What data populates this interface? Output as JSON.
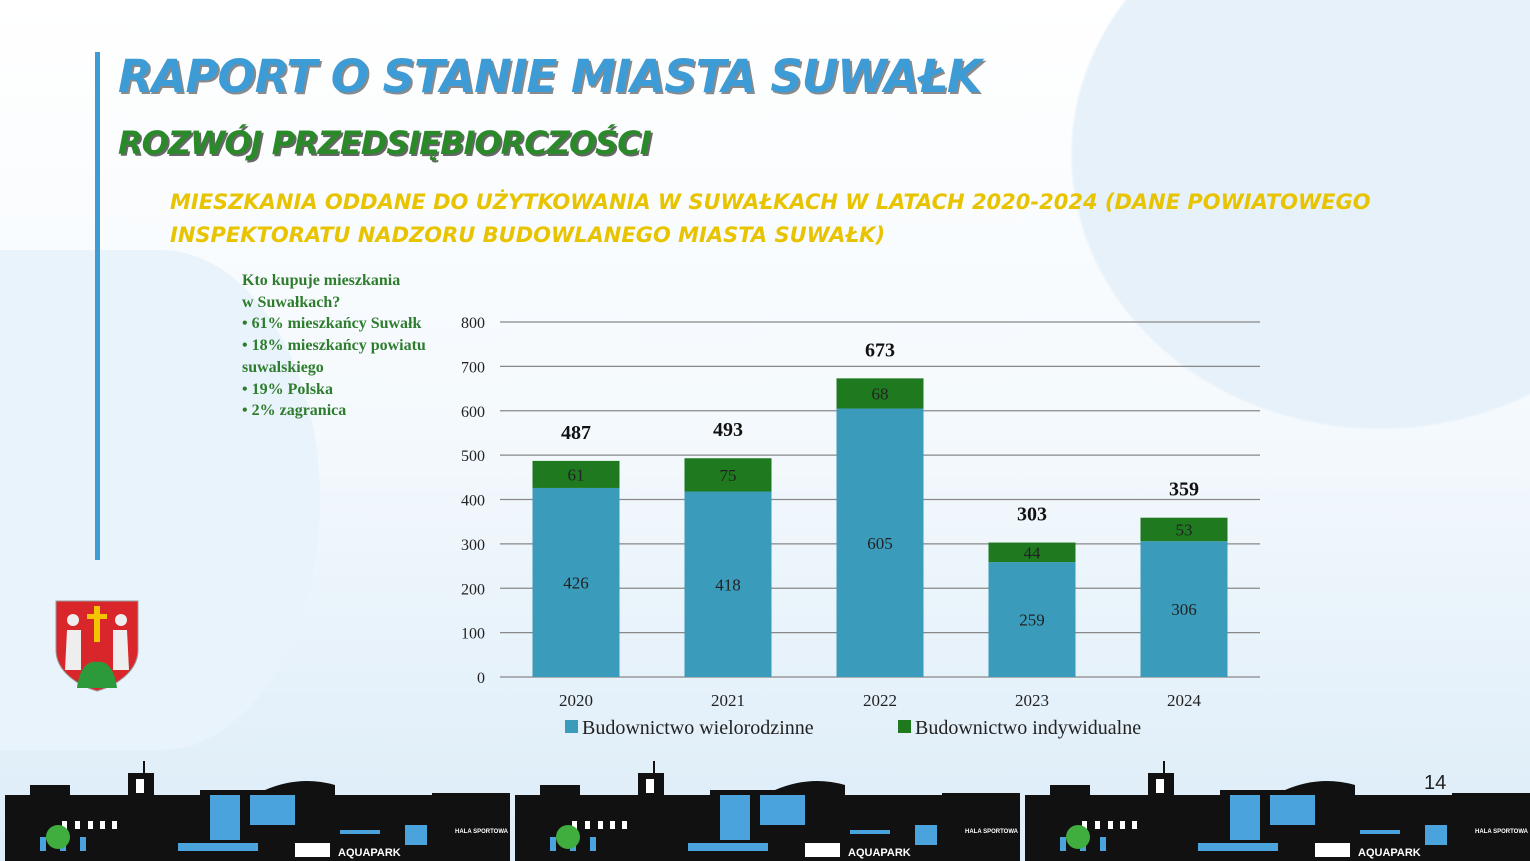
{
  "header": {
    "title": "RAPORT O STANIE MIASTA SUWAŁK",
    "subtitle": "ROZWÓJ PRZEDSIĘBIORCZOŚCI",
    "chart_heading": "MIESZKANIA ODDANE DO UŻYTKOWANIA W SUWAŁKACH W LATACH 2020-2024 (DANE POWIATOWEGO INSPEKTORATU NADZORU BUDOWLANEGO MIASTA SUWAŁK)"
  },
  "side_note": {
    "lines": [
      "Kto kupuje mieszkania",
      "w Suwałkach?",
      "• 61% mieszkańcy Suwałk",
      "• 18% mieszkańcy powiatu",
      "suwalskiego",
      "• 19% Polska",
      "• 2% zagranica"
    ]
  },
  "page_number": "14",
  "skyline": {
    "label1": "AQUAPARK",
    "label2": "HALA SPORTOWA"
  },
  "chart_data": {
    "type": "bar",
    "stacked": true,
    "categories": [
      "2020",
      "2021",
      "2022",
      "2023",
      "2024"
    ],
    "series": [
      {
        "name": "Budownictwo wielorodzinne",
        "color": "#3a9bbb",
        "values": [
          426,
          418,
          605,
          259,
          306
        ]
      },
      {
        "name": "Budownictwo indywidualne",
        "color": "#1f7a1f",
        "values": [
          61,
          75,
          68,
          44,
          53
        ]
      }
    ],
    "totals": [
      487,
      493,
      673,
      303,
      359
    ],
    "ylim": [
      0,
      800
    ],
    "yticks": [
      0,
      100,
      200,
      300,
      400,
      500,
      600,
      700,
      800
    ],
    "grid": true,
    "legend": "bottom"
  }
}
